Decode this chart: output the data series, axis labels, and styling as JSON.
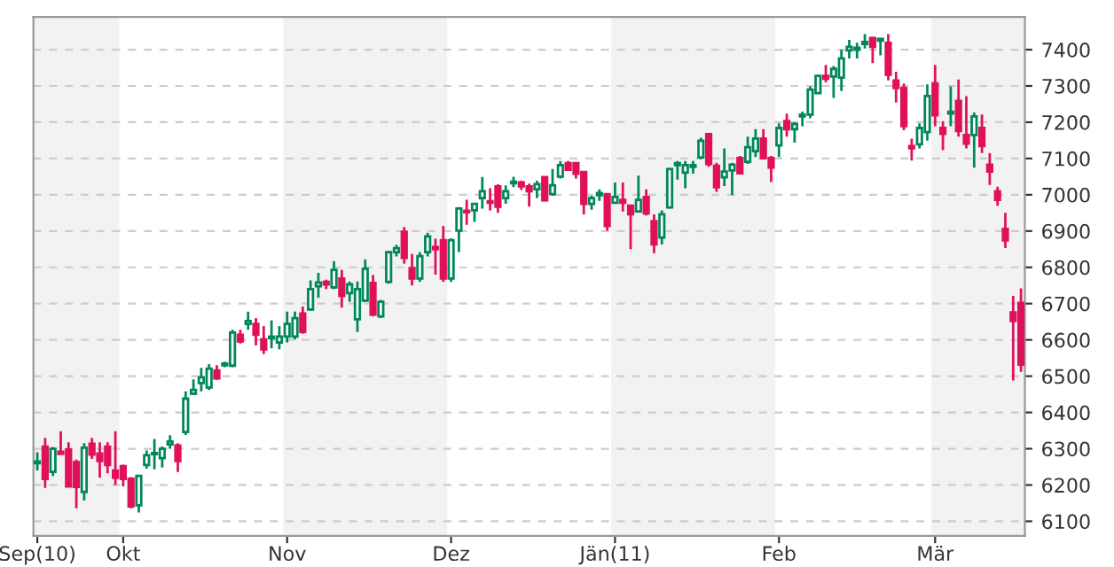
{
  "chart_data": {
    "type": "candlestick",
    "categories": [
      "Sep(10)",
      null,
      null,
      null,
      null,
      null,
      null,
      null,
      null,
      null,
      null,
      "Okt",
      null,
      null,
      null,
      null,
      null,
      null,
      null,
      null,
      null,
      null,
      null,
      null,
      null,
      null,
      null,
      null,
      null,
      null,
      null,
      null,
      "Nov",
      null,
      null,
      null,
      null,
      null,
      null,
      null,
      null,
      null,
      null,
      null,
      null,
      null,
      null,
      null,
      null,
      null,
      null,
      null,
      null,
      "Dez",
      null,
      null,
      null,
      null,
      null,
      null,
      null,
      null,
      null,
      null,
      null,
      null,
      null,
      null,
      null,
      null,
      null,
      null,
      null,
      null,
      "Jän(11)",
      null,
      null,
      null,
      null,
      null,
      null,
      null,
      null,
      null,
      null,
      null,
      null,
      null,
      null,
      null,
      null,
      null,
      null,
      null,
      null,
      "Feb",
      null,
      null,
      null,
      null,
      null,
      null,
      null,
      null,
      null,
      null,
      null,
      null,
      null,
      null,
      null,
      null,
      null,
      null,
      null,
      "Mär",
      null,
      null,
      null,
      null,
      null,
      null,
      null,
      null,
      null,
      null,
      null
    ],
    "ohlc": [
      [
        6260,
        6290,
        6240,
        6265
      ],
      [
        6306,
        6330,
        6192,
        6217
      ],
      [
        6236,
        6305,
        6225,
        6300
      ],
      [
        6292,
        6348,
        6286,
        6286
      ],
      [
        6298,
        6318,
        6196,
        6196
      ],
      [
        6263,
        6270,
        6136,
        6195
      ],
      [
        6181,
        6315,
        6157,
        6303
      ],
      [
        6314,
        6330,
        6272,
        6284
      ],
      [
        6287,
        6318,
        6220,
        6266
      ],
      [
        6306,
        6318,
        6232,
        6255
      ],
      [
        6240,
        6348,
        6200,
        6220
      ],
      [
        6252,
        6256,
        6196,
        6217
      ],
      [
        6217,
        6222,
        6136,
        6141
      ],
      [
        6144,
        6225,
        6124,
        6225
      ],
      [
        6255,
        6295,
        6245,
        6282
      ],
      [
        6285,
        6327,
        6243,
        6288
      ],
      [
        6274,
        6306,
        6248,
        6300
      ],
      [
        6312,
        6337,
        6300,
        6320
      ],
      [
        6309,
        6315,
        6236,
        6266
      ],
      [
        6346,
        6458,
        6338,
        6438
      ],
      [
        6452,
        6491,
        6448,
        6462
      ],
      [
        6481,
        6523,
        6458,
        6497
      ],
      [
        6469,
        6533,
        6462,
        6521
      ],
      [
        6516,
        6530,
        6490,
        6494
      ],
      [
        6530,
        6540,
        6525,
        6535
      ],
      [
        6529,
        6628,
        6525,
        6620
      ],
      [
        6614,
        6628,
        6590,
        6596
      ],
      [
        6644,
        6678,
        6628,
        6652
      ],
      [
        6644,
        6660,
        6585,
        6614
      ],
      [
        6601,
        6638,
        6561,
        6574
      ],
      [
        6605,
        6654,
        6577,
        6609
      ],
      [
        6593,
        6638,
        6574,
        6609
      ],
      [
        6609,
        6678,
        6593,
        6644
      ],
      [
        6609,
        6678,
        6601,
        6660
      ],
      [
        6673,
        6692,
        6617,
        6622
      ],
      [
        6684,
        6764,
        6681,
        6740
      ],
      [
        6748,
        6785,
        6716,
        6758
      ],
      [
        6760,
        6766,
        6740,
        6753
      ],
      [
        6745,
        6817,
        6740,
        6793
      ],
      [
        6769,
        6793,
        6689,
        6721
      ],
      [
        6729,
        6761,
        6705,
        6753
      ],
      [
        6657,
        6761,
        6622,
        6740
      ],
      [
        6708,
        6822,
        6705,
        6796
      ],
      [
        6757,
        6779,
        6665,
        6670
      ],
      [
        6665,
        6710,
        6660,
        6705
      ],
      [
        6760,
        6845,
        6755,
        6842
      ],
      [
        6842,
        6862,
        6830,
        6853
      ],
      [
        6898,
        6911,
        6810,
        6826
      ],
      [
        6798,
        6837,
        6750,
        6769
      ],
      [
        6769,
        6842,
        6760,
        6831
      ],
      [
        6842,
        6895,
        6830,
        6885
      ],
      [
        6856,
        6879,
        6780,
        6850
      ],
      [
        6875,
        6914,
        6760,
        6769
      ],
      [
        6769,
        6880,
        6760,
        6875
      ],
      [
        6901,
        6966,
        6842,
        6962
      ],
      [
        6956,
        6986,
        6917,
        6952
      ],
      [
        6957,
        6975,
        6925,
        6975
      ],
      [
        6991,
        7049,
        6962,
        7010
      ],
      [
        6982,
        7018,
        6957,
        6978
      ],
      [
        7023,
        7029,
        6950,
        6967
      ],
      [
        6991,
        7026,
        6975,
        7010
      ],
      [
        7032,
        7050,
        7021,
        7036
      ],
      [
        7034,
        7039,
        7013,
        7023
      ],
      [
        7023,
        7031,
        6967,
        7010
      ],
      [
        7015,
        7039,
        6991,
        7029
      ],
      [
        7049,
        7050,
        6982,
        6985
      ],
      [
        7002,
        7071,
        6997,
        7026
      ],
      [
        7050,
        7093,
        7045,
        7082
      ],
      [
        7087,
        7093,
        7069,
        7069
      ],
      [
        7087,
        7087,
        7045,
        7058
      ],
      [
        7063,
        7063,
        6946,
        6975
      ],
      [
        6975,
        6997,
        6959,
        6991
      ],
      [
        6999,
        7015,
        6983,
        7005
      ],
      [
        7002,
        7002,
        6901,
        6914
      ],
      [
        6978,
        7034,
        6975,
        6994
      ],
      [
        6986,
        7034,
        6954,
        6978
      ],
      [
        6970,
        6970,
        6850,
        6946
      ],
      [
        6954,
        7053,
        6954,
        6986
      ],
      [
        6994,
        7015,
        6943,
        6949
      ],
      [
        6927,
        6946,
        6839,
        6863
      ],
      [
        6882,
        6957,
        6863,
        6946
      ],
      [
        6965,
        7074,
        6962,
        7071
      ],
      [
        7082,
        7093,
        7042,
        7087
      ],
      [
        7061,
        7093,
        7018,
        7082
      ],
      [
        7077,
        7093,
        7058,
        7082
      ],
      [
        7103,
        7157,
        7098,
        7149
      ],
      [
        7167,
        7170,
        7077,
        7085
      ],
      [
        7080,
        7088,
        7008,
        7021
      ],
      [
        7048,
        7128,
        7024,
        7064
      ],
      [
        7067,
        7088,
        6999,
        7083
      ],
      [
        7101,
        7107,
        7056,
        7059
      ],
      [
        7091,
        7160,
        7085,
        7131
      ],
      [
        7120,
        7181,
        7104,
        7155
      ],
      [
        7155,
        7181,
        7101,
        7101
      ],
      [
        7101,
        7107,
        7035,
        7075
      ],
      [
        7136,
        7197,
        7104,
        7184
      ],
      [
        7203,
        7224,
        7160,
        7181
      ],
      [
        7181,
        7200,
        7144,
        7195
      ],
      [
        7216,
        7229,
        7189,
        7221
      ],
      [
        7221,
        7299,
        7211,
        7290
      ],
      [
        7280,
        7328,
        7280,
        7328
      ],
      [
        7328,
        7358,
        7310,
        7320
      ],
      [
        7326,
        7355,
        7267,
        7347
      ],
      [
        7323,
        7400,
        7286,
        7376
      ],
      [
        7398,
        7427,
        7376,
        7408
      ],
      [
        7400,
        7419,
        7376,
        7405
      ],
      [
        7416,
        7443,
        7403,
        7421
      ],
      [
        7432,
        7435,
        7363,
        7408
      ],
      [
        7425,
        7430,
        7384,
        7430
      ],
      [
        7419,
        7443,
        7315,
        7331
      ],
      [
        7315,
        7339,
        7254,
        7294
      ],
      [
        7294,
        7307,
        7178,
        7189
      ],
      [
        7134,
        7155,
        7094,
        7128
      ],
      [
        7139,
        7197,
        7128,
        7184
      ],
      [
        7173,
        7304,
        7149,
        7272
      ],
      [
        7307,
        7358,
        7189,
        7219
      ],
      [
        7184,
        7203,
        7123,
        7168
      ],
      [
        7224,
        7299,
        7189,
        7229
      ],
      [
        7259,
        7318,
        7160,
        7176
      ],
      [
        7165,
        7272,
        7128,
        7141
      ],
      [
        7165,
        7227,
        7075,
        7216
      ],
      [
        7184,
        7221,
        7115,
        7134
      ],
      [
        7083,
        7115,
        7027,
        7064
      ],
      [
        7010,
        7022,
        6970,
        6986
      ],
      [
        6906,
        6950,
        6853,
        6874
      ],
      [
        6676,
        6721,
        6488,
        6652
      ],
      [
        6702,
        6742,
        6512,
        6532
      ]
    ],
    "colors": [
      "#00875a",
      "#e0105a",
      "#00875a",
      "#e0105a",
      "#e0105a",
      "#e0105a",
      "#00875a",
      "#e0105a",
      "#e0105a",
      "#e0105a",
      "#e0105a",
      "#e0105a",
      "#e0105a",
      "#00875a",
      "#00875a",
      "#00875a",
      "#00875a",
      "#00875a",
      "#e0105a",
      "#00875a",
      "#00875a",
      "#00875a",
      "#00875a",
      "#e0105a",
      "#00875a",
      "#00875a",
      "#e0105a",
      "#00875a",
      "#e0105a",
      "#e0105a",
      "#00875a",
      "#00875a",
      "#00875a",
      "#00875a",
      "#e0105a",
      "#00875a",
      "#00875a",
      "#e0105a",
      "#00875a",
      "#e0105a",
      "#00875a",
      "#00875a",
      "#00875a",
      "#e0105a",
      "#00875a",
      "#00875a",
      "#00875a",
      "#e0105a",
      "#e0105a",
      "#00875a",
      "#00875a",
      "#e0105a",
      "#e0105a",
      "#00875a",
      "#00875a",
      "#e0105a",
      "#00875a",
      "#00875a",
      "#e0105a",
      "#e0105a",
      "#00875a",
      "#00875a",
      "#e0105a",
      "#e0105a",
      "#00875a",
      "#e0105a",
      "#00875a",
      "#00875a",
      "#e0105a",
      "#e0105a",
      "#e0105a",
      "#00875a",
      "#00875a",
      "#e0105a",
      "#00875a",
      "#e0105a",
      "#e0105a",
      "#00875a",
      "#e0105a",
      "#e0105a",
      "#00875a",
      "#00875a",
      "#00875a",
      "#00875a",
      "#00875a",
      "#00875a",
      "#e0105a",
      "#e0105a",
      "#00875a",
      "#00875a",
      "#e0105a",
      "#00875a",
      "#00875a",
      "#e0105a",
      "#e0105a",
      "#00875a",
      "#e0105a",
      "#00875a",
      "#00875a",
      "#00875a",
      "#00875a",
      "#e0105a",
      "#00875a",
      "#00875a",
      "#00875a",
      "#00875a",
      "#00875a",
      "#e0105a",
      "#00875a",
      "#e0105a",
      "#e0105a",
      "#e0105a",
      "#e0105a",
      "#00875a",
      "#00875a",
      "#e0105a",
      "#e0105a",
      "#00875a",
      "#e0105a",
      "#e0105a",
      "#00875a",
      "#e0105a",
      "#e0105a",
      "#e0105a",
      "#e0105a",
      "#e0105a",
      "#e0105a"
    ],
    "ylim": [
      6060,
      7490
    ],
    "yticks": [
      6100,
      6200,
      6300,
      6400,
      6500,
      6600,
      6700,
      6800,
      6900,
      7000,
      7100,
      7200,
      7300,
      7400
    ],
    "grid": "y"
  }
}
